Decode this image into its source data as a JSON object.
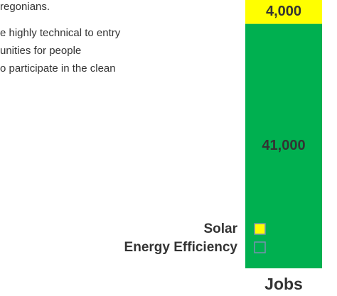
{
  "chart_data": {
    "type": "stacked-bar",
    "annotations": [
      "regonians.",
      "e highly technical to entry",
      "unities for people",
      "o participate in the clean"
    ],
    "categories": [
      "Jobs"
    ],
    "series": [
      {
        "name": "Solar",
        "color": "#ffff00",
        "values": [
          4000
        ],
        "value_labels": [
          "4,000"
        ]
      },
      {
        "name": "Energy Efficiency",
        "color": "#00b050",
        "values": [
          41000
        ],
        "value_labels": [
          "41,000"
        ]
      }
    ]
  }
}
